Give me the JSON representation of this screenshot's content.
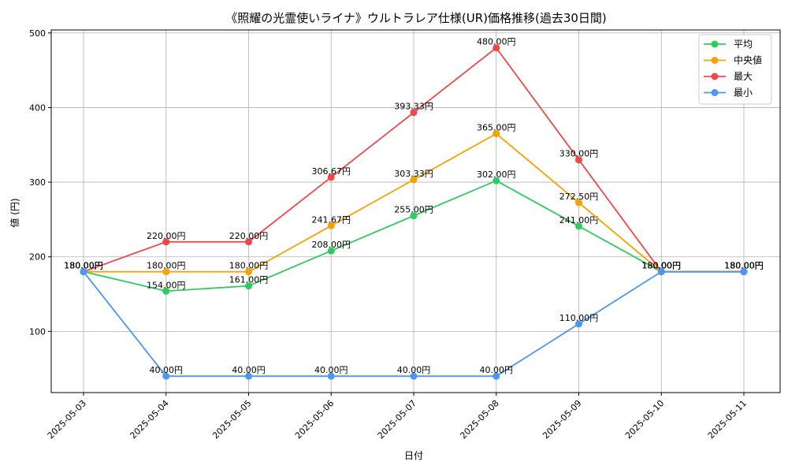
{
  "chart_data": {
    "type": "line",
    "title": "《照耀の光霊使いライナ》ウルトラレア仕様(UR)価格推移(過去30日間)",
    "xlabel": "日付",
    "ylabel": "値 (円)",
    "x": [
      "2025-05-03",
      "2025-05-04",
      "2025-05-05",
      "2025-05-06",
      "2025-05-07",
      "2025-05-08",
      "2025-05-09",
      "2025-05-10",
      "2025-05-11"
    ],
    "ylim": [
      18,
      504
    ],
    "yticks": [
      100,
      200,
      300,
      400,
      500
    ],
    "grid": true,
    "legend_position": "top-right",
    "series": [
      {
        "name": "平均",
        "color": "#2ecc5e",
        "values": [
          180.0,
          154.0,
          161.0,
          208.0,
          255.0,
          302.0,
          241.0,
          180.0,
          180.0
        ],
        "labels": [
          "180.00円",
          "154.00円",
          "161.00円",
          "208.00円",
          "255.00円",
          "302.00円",
          "241.00円",
          "180.00円",
          "180.00円"
        ]
      },
      {
        "name": "中央値",
        "color": "#f5a300",
        "values": [
          180.0,
          180.0,
          180.0,
          241.67,
          303.33,
          365.0,
          272.5,
          180.0,
          180.0
        ],
        "labels": [
          "180.00円",
          "180.00円",
          "180.00円",
          "241.67円",
          "303.33円",
          "365.00円",
          "272.50円",
          "180.00円",
          "180.00円"
        ]
      },
      {
        "name": "最大",
        "color": "#f04848",
        "values": [
          180.0,
          220.0,
          220.0,
          306.67,
          393.33,
          480.0,
          330.0,
          180.0,
          180.0
        ],
        "labels": [
          "180.00円",
          "220.00円",
          "220.00円",
          "306.67円",
          "393.33円",
          "480.00円",
          "330.00円",
          "180.00円",
          "180.00円"
        ]
      },
      {
        "name": "最小",
        "color": "#4a98f0",
        "values": [
          180.0,
          40.0,
          40.0,
          40.0,
          40.0,
          40.0,
          110.0,
          180.0,
          180.0
        ],
        "labels": [
          "180.00円",
          "40.00円",
          "40.00円",
          "40.00円",
          "40.00円",
          "40.00円",
          "110.00円",
          "180.00円",
          "180.00円"
        ]
      }
    ]
  }
}
